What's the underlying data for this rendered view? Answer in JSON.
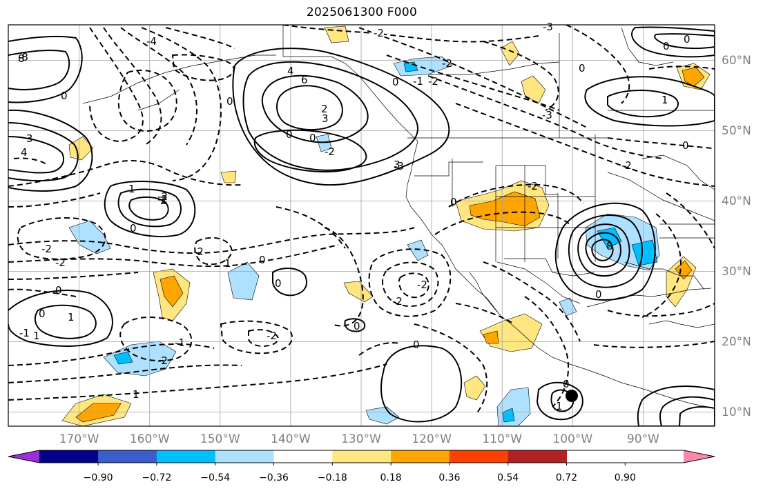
{
  "title": "2025061300 F000",
  "map": {
    "longitude_labels": [
      "170°W",
      "160°W",
      "150°W",
      "140°W",
      "130°W",
      "120°W",
      "110°W",
      "100°W",
      "90°W"
    ],
    "latitude_labels": [
      "60°N",
      "50°N",
      "40°N",
      "30°N",
      "20°N",
      "10°N"
    ],
    "contour_labels": [
      "-2",
      "-4",
      "-8",
      "-3",
      "-1",
      "-2",
      "-2",
      "-2",
      "-1",
      "-2",
      "-2",
      "-2",
      "-3",
      "-2",
      "-2",
      "-2",
      "-1",
      "-2",
      "-2",
      "-2",
      "-2",
      "-2",
      "-3",
      "0",
      "0",
      "0",
      "0",
      "0",
      "0",
      "0",
      "0",
      "0",
      "0",
      "0",
      "0",
      "0",
      "0",
      "0",
      "0",
      "0",
      "0",
      "0",
      "1",
      "1",
      "1",
      "1",
      "1",
      "1",
      "1",
      "2",
      "2",
      "3",
      "3",
      "3",
      "4",
      "4",
      "6",
      "8",
      "8"
    ],
    "grid": true,
    "colors": {
      "contour": "#000000",
      "grid": "#a0a0a0",
      "coastline": "#000000"
    }
  },
  "colorbar": {
    "tick_labels": [
      "−0.90",
      "−0.72",
      "−0.54",
      "−0.36",
      "−0.18",
      "0.18",
      "0.36",
      "0.54",
      "0.72",
      "0.90"
    ],
    "colors": [
      "#9b30d9",
      "#00008b",
      "#3a5fcd",
      "#00bfff",
      "#aee0ff",
      "#ffffff",
      "#ffe680",
      "#ffa500",
      "#ff4000",
      "#b22222",
      "#ff88aa"
    ]
  }
}
